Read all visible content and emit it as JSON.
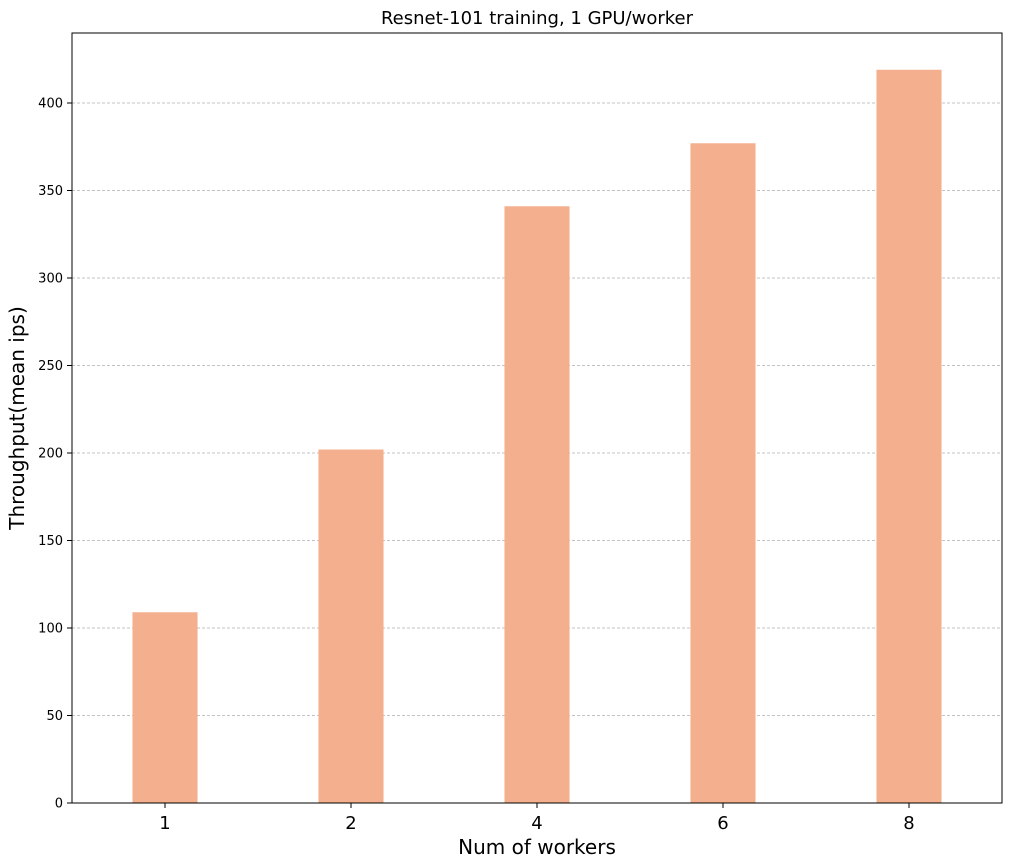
{
  "chart_data": {
    "type": "bar",
    "title": "Resnet-101 training, 1 GPU/worker",
    "xlabel": "Num of workers",
    "ylabel": "Throughput(mean ips)",
    "categories": [
      "1",
      "2",
      "4",
      "6",
      "8"
    ],
    "values": [
      109,
      202,
      341,
      377,
      419
    ],
    "ylim": [
      0,
      440
    ],
    "yticks": [
      0,
      50,
      100,
      150,
      200,
      250,
      300,
      350,
      400
    ],
    "grid": "y-dashed",
    "legend": "none",
    "bar_color": "#f4b08e",
    "grid_color": "#b0b0b0",
    "axis_color": "#000000"
  }
}
